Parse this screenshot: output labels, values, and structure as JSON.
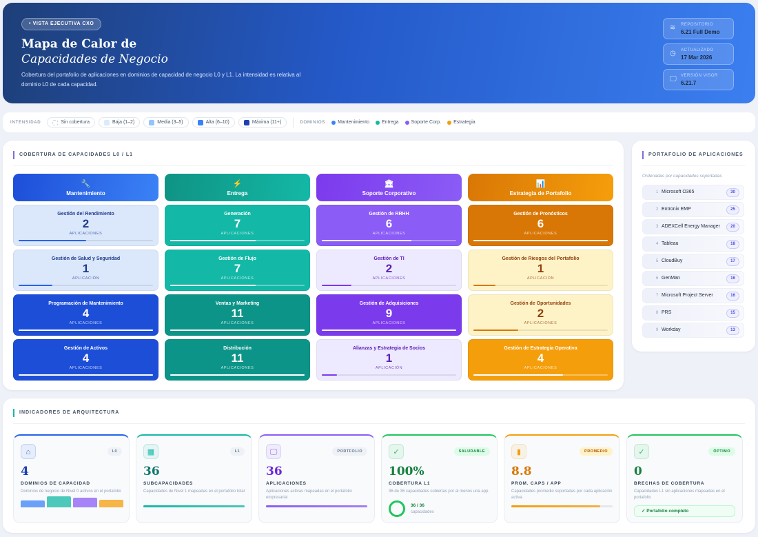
{
  "hero": {
    "badge": "• VISTA EJECUTIVA CXO",
    "title_line1": "Mapa de Calor de",
    "title_line2": "Capacidades de Negocio",
    "description": "Cobertura del portafolio de aplicaciones en dominios de capacidad de negocio L0 y L1. La intensidad es relativa al dominio L0 de cada capacidad.",
    "meta": [
      {
        "icon": "layers-icon",
        "label": "REPOSITORIO",
        "value": "6.21 Full Demo"
      },
      {
        "icon": "clock-icon",
        "label": "ACTUALIZADO",
        "value": "17 Mar 2026"
      },
      {
        "icon": "monitor-icon",
        "label": "VERSIÓN VISOR",
        "value": "6.21.7"
      }
    ]
  },
  "legend": {
    "intensity_label": "INTENSIDAD",
    "levels": [
      {
        "label": "Sin cobertura",
        "color": "#ffffff"
      },
      {
        "label": "Baja (1–2)",
        "color": "#dbeafe"
      },
      {
        "label": "Media (3–5)",
        "color": "#93c5fd"
      },
      {
        "label": "Alta (6–10)",
        "color": "#3b82f6"
      },
      {
        "label": "Máxima (11+)",
        "color": "#1e40af"
      }
    ],
    "domains_label": "DOMINIOS",
    "domains": [
      {
        "label": "Mantenimiento",
        "color": "#3b82f6"
      },
      {
        "label": "Entrega",
        "color": "#14b8a6"
      },
      {
        "label": "Soporte Corp.",
        "color": "#8b5cf6"
      },
      {
        "label": "Estrategia",
        "color": "#f59e0b"
      }
    ]
  },
  "heatmap": {
    "title": "COBERTURA DE CAPACIDADES L0 / L1",
    "domains": [
      {
        "name": "Mantenimiento",
        "icon": "🔧",
        "header_bg": "linear-gradient(100deg,#1d4ed8,#3b82f6)",
        "max": 4,
        "caps": [
          {
            "name": "Gestión del Rendimiento",
            "count": "2",
            "unit": "APLICACIONES",
            "bg": "#dbe7fb",
            "fg": "#1e3a8a",
            "bar": "#2563eb"
          },
          {
            "name": "Gestión de Salud y Seguridad",
            "count": "1",
            "unit": "APLICACIÓN",
            "bg": "#dbe7fb",
            "fg": "#1e3a8a",
            "bar": "#2563eb"
          },
          {
            "name": "Programación de Mantenimiento",
            "count": "4",
            "unit": "APLICACIONES",
            "bg": "#1d4ed8",
            "fg": "#ffffff",
            "bar": "#ffffff"
          },
          {
            "name": "Gestión de Activos",
            "count": "4",
            "unit": "APLICACIONES",
            "bg": "#1d4ed8",
            "fg": "#ffffff",
            "bar": "#ffffff"
          }
        ]
      },
      {
        "name": "Entrega",
        "icon": "⚡",
        "header_bg": "linear-gradient(100deg,#0f9384,#14b8a6)",
        "max": 11,
        "caps": [
          {
            "name": "Generación",
            "count": "7",
            "unit": "APLICACIONES",
            "bg": "#14b8a6",
            "fg": "#ffffff",
            "bar": "#ffffff"
          },
          {
            "name": "Gestión de Flujo",
            "count": "7",
            "unit": "APLICACIONES",
            "bg": "#14b8a6",
            "fg": "#ffffff",
            "bar": "#ffffff"
          },
          {
            "name": "Ventas y Marketing",
            "count": "11",
            "unit": "APLICACIONES",
            "bg": "#0d9488",
            "fg": "#ffffff",
            "bar": "#ffffff"
          },
          {
            "name": "Distribución",
            "count": "11",
            "unit": "APLICACIONES",
            "bg": "#0d9488",
            "fg": "#ffffff",
            "bar": "#ffffff"
          }
        ]
      },
      {
        "name": "Soporte Corporativo",
        "icon": "🏛",
        "header_bg": "linear-gradient(100deg,#7c3aed,#8b5cf6)",
        "max": 9,
        "caps": [
          {
            "name": "Gestión de RRHH",
            "count": "6",
            "unit": "APLICACIONES",
            "bg": "#8b5cf6",
            "fg": "#ffffff",
            "bar": "#ffffff"
          },
          {
            "name": "Gestión de TI",
            "count": "2",
            "unit": "APLICACIONES",
            "bg": "#ede9fe",
            "fg": "#5b21b6",
            "bar": "#7c3aed"
          },
          {
            "name": "Gestión de Adquisiciones",
            "count": "9",
            "unit": "APLICACIONES",
            "bg": "#7c3aed",
            "fg": "#ffffff",
            "bar": "#ffffff"
          },
          {
            "name": "Alianzas y Estrategia de Socios",
            "count": "1",
            "unit": "APLICACIÓN",
            "bg": "#ede9fe",
            "fg": "#5b21b6",
            "bar": "#7c3aed"
          }
        ]
      },
      {
        "name": "Estrategia de Portafolio",
        "icon": "📊",
        "header_bg": "linear-gradient(100deg,#d97706,#f59e0b)",
        "max": 6,
        "caps": [
          {
            "name": "Gestión de Pronósticos",
            "count": "6",
            "unit": "APLICACIONES",
            "bg": "#d97706",
            "fg": "#ffffff",
            "bar": "#ffffff"
          },
          {
            "name": "Gestión de Riesgos del Portafolio",
            "count": "1",
            "unit": "APLICACIÓN",
            "bg": "#fef3c7",
            "fg": "#92400e",
            "bar": "#d97706"
          },
          {
            "name": "Gestión de Oportunidades",
            "count": "2",
            "unit": "APLICACIONES",
            "bg": "#fef3c7",
            "fg": "#92400e",
            "bar": "#d97706"
          },
          {
            "name": "Gestión de Estrategia Operativa",
            "count": "4",
            "unit": "APLICACIONES",
            "bg": "#f59e0b",
            "fg": "#ffffff",
            "bar": "#ffffff"
          }
        ]
      }
    ]
  },
  "portfolio": {
    "title": "PORTAFOLIO DE APLICACIONES",
    "subtitle": "Ordenadas por capacidades soportadas",
    "apps": [
      {
        "rank": "1",
        "name": "Microsoft O365",
        "count": "30"
      },
      {
        "rank": "2",
        "name": "Entronix EMP",
        "count": "25"
      },
      {
        "rank": "3",
        "name": "ADEXCell Energy Manager",
        "count": "20"
      },
      {
        "rank": "4",
        "name": "Tableau",
        "count": "18"
      },
      {
        "rank": "5",
        "name": "CloudBuy",
        "count": "17"
      },
      {
        "rank": "6",
        "name": "GenMan",
        "count": "16"
      },
      {
        "rank": "7",
        "name": "Microsoft Project Server",
        "count": "16"
      },
      {
        "rank": "8",
        "name": "PRS",
        "count": "15"
      },
      {
        "rank": "9",
        "name": "Workday",
        "count": "13"
      }
    ]
  },
  "indicators": {
    "title": "INDICADORES DE ARQUITECTURA",
    "cards": [
      {
        "icon": "home-icon",
        "glyph": "⌂",
        "tag": "L0",
        "value": "4",
        "title": "DOMINIOS DE CAPACIDAD",
        "desc": "Dominios de negocio de Nivel 0 activos en el portafolio",
        "accent": "#2563eb",
        "value_color": "#1e40af",
        "domain_bars": [
          4,
          11,
          9,
          6
        ]
      },
      {
        "icon": "grid-icon",
        "glyph": "▦",
        "tag": "L1",
        "value": "36",
        "title": "SUBCAPACIDADES",
        "desc": "Capacidades de Nivel 1 mapeadas en el portafolio total",
        "accent": "#14b8a6",
        "value_color": "#0f766e",
        "progress": 100
      },
      {
        "icon": "monitor-icon",
        "glyph": "🖵",
        "tag": "PORTFOLIO",
        "value": "36",
        "title": "APLICACIONES",
        "desc": "Aplicaciones activas mapeadas en el portafolio empresarial",
        "accent": "#8b5cf6",
        "value_color": "#6d28d9",
        "progress": 100
      },
      {
        "icon": "check-circle-icon",
        "glyph": "✓",
        "tag": "SALUDABLE",
        "value": "100%",
        "title": "COBERTURA L1",
        "desc": "36 de 36 capacidades cubiertas por al menos una app",
        "accent": "#22c55e",
        "value_color": "#15803d",
        "ring_value": "36 / 36",
        "ring_label": "capacidades",
        "coverage": 100
      },
      {
        "icon": "bar-chart-icon",
        "glyph": "▮",
        "tag": "PROMEDIO",
        "value": "8.8",
        "title": "PROM. CAPS / APP",
        "desc": "Capacidades promedio soportadas por cada aplicación activa",
        "accent": "#f59e0b",
        "value_color": "#d97706",
        "progress": 88
      },
      {
        "icon": "check-icon",
        "glyph": "✓",
        "tag": "ÓPTIMO",
        "value": "0",
        "title": "BRECHAS DE COBERTURA",
        "desc": "Capacidades L1 sin aplicaciones mapeadas en el portafolio",
        "accent": "#22c55e",
        "value_color": "#15803d",
        "status": "✓  Portafolio completo"
      }
    ]
  }
}
